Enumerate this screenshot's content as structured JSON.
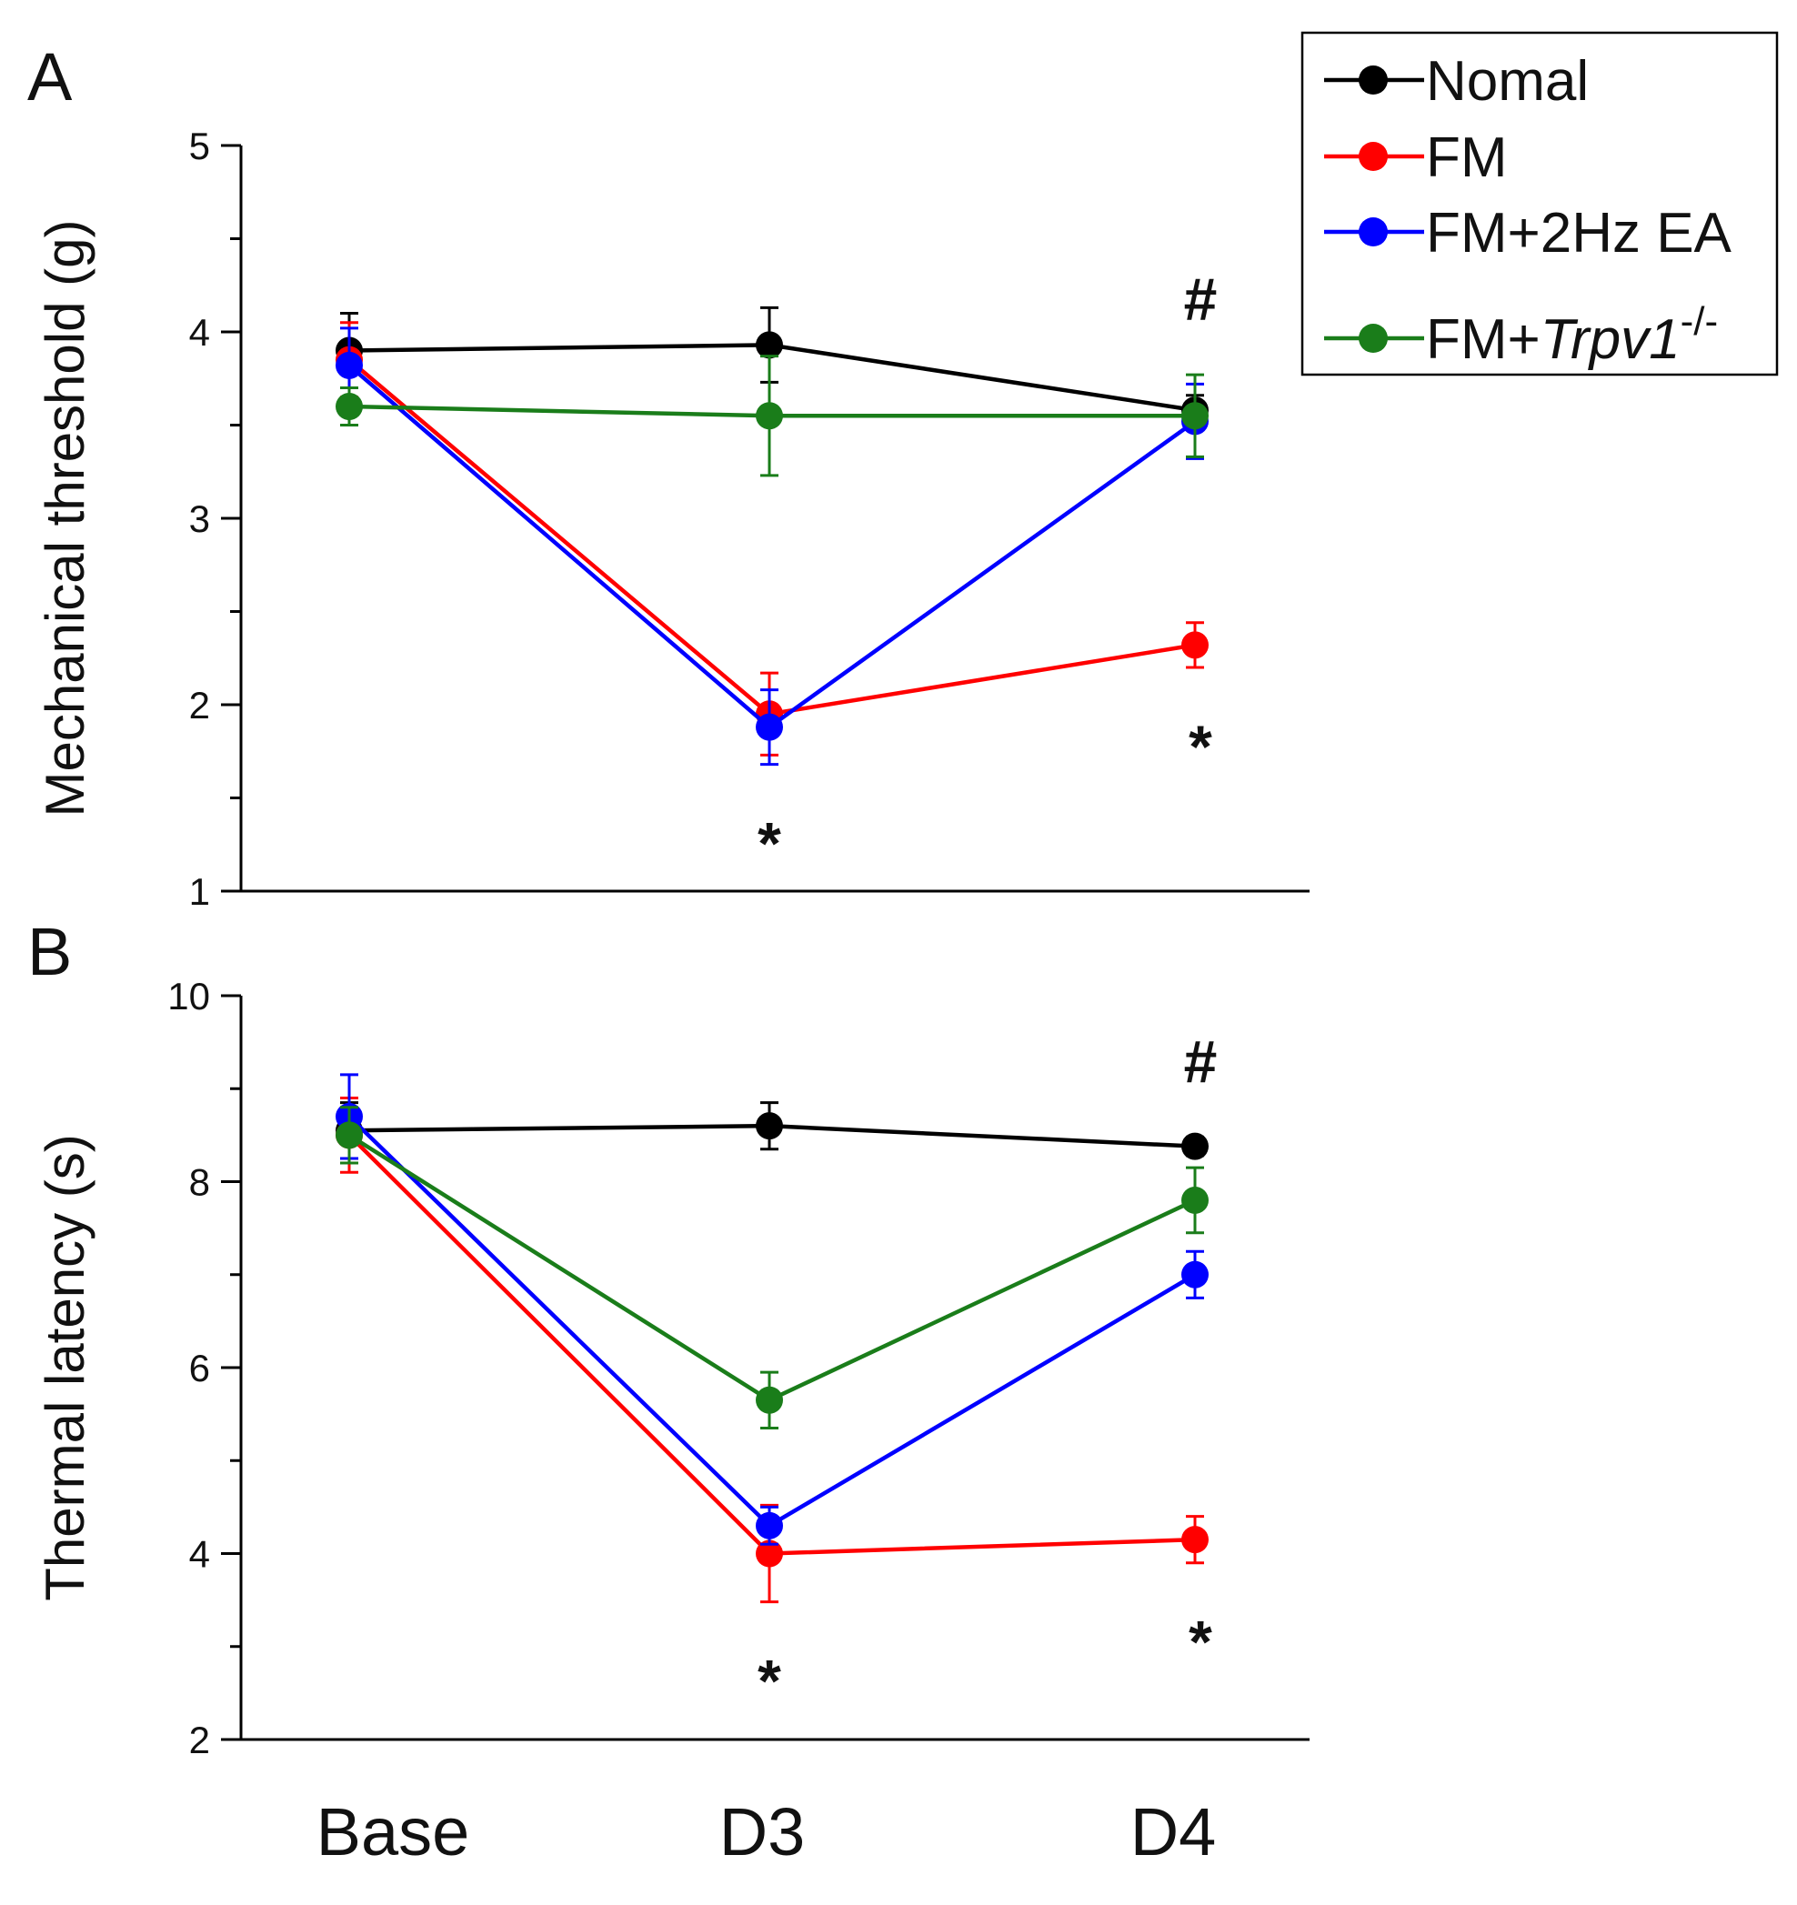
{
  "figure": {
    "panel_labels": [
      "A",
      "B"
    ],
    "x_categories": [
      "Base",
      "D3",
      "D4"
    ]
  },
  "legend": {
    "items": [
      {
        "label": "Nomal",
        "color": "#000000"
      },
      {
        "label": "FM",
        "color": "#ff0000"
      },
      {
        "label": "FM+2Hz EA",
        "color": "#0000ff"
      },
      {
        "label_prefix": "FM+",
        "label_italic": "Trpv1",
        "label_sup": "-/-",
        "color": "#1a7d1a"
      }
    ]
  },
  "chart_data": [
    {
      "type": "line",
      "panel": "A",
      "ylabel": "Mechanical threshold (g)",
      "xlabel": "",
      "categories": [
        "Base",
        "D3",
        "D4"
      ],
      "ylim": [
        1,
        5
      ],
      "yticks": [
        1,
        2,
        3,
        4,
        5
      ],
      "series": [
        {
          "name": "Nomal",
          "color": "#000000",
          "values": [
            3.9,
            3.93,
            3.58
          ],
          "err": [
            0.2,
            0.2,
            0.08
          ]
        },
        {
          "name": "FM",
          "color": "#ff0000",
          "values": [
            3.85,
            1.95,
            2.32
          ],
          "err": [
            0.2,
            0.22,
            0.12
          ]
        },
        {
          "name": "FM+2Hz EA",
          "color": "#0000ff",
          "values": [
            3.82,
            1.88,
            3.52
          ],
          "err": [
            0.2,
            0.2,
            0.2
          ]
        },
        {
          "name": "FM+Trpv1-/-",
          "color": "#1a7d1a",
          "values": [
            3.6,
            3.55,
            3.55
          ],
          "err": [
            0.1,
            0.32,
            0.22
          ]
        }
      ],
      "annotations": [
        {
          "text": "*",
          "category": "D3",
          "position": "below"
        },
        {
          "text": "*",
          "category": "D4",
          "position": "below"
        },
        {
          "text": "#",
          "category": "D4",
          "position": "above"
        }
      ]
    },
    {
      "type": "line",
      "panel": "B",
      "ylabel": "Thermal latency (s)",
      "xlabel": "",
      "categories": [
        "Base",
        "D3",
        "D4"
      ],
      "ylim": [
        2,
        10
      ],
      "yticks": [
        2,
        4,
        6,
        8,
        10
      ],
      "series": [
        {
          "name": "Nomal",
          "color": "#000000",
          "values": [
            8.55,
            8.6,
            8.38
          ],
          "err": [
            0.3,
            0.25,
            0.1
          ]
        },
        {
          "name": "FM",
          "color": "#ff0000",
          "values": [
            8.5,
            4.0,
            4.15
          ],
          "err": [
            0.4,
            0.52,
            0.25
          ]
        },
        {
          "name": "FM+2Hz EA",
          "color": "#0000ff",
          "values": [
            8.7,
            4.3,
            7.0
          ],
          "err": [
            0.45,
            0.2,
            0.25
          ]
        },
        {
          "name": "FM+Trpv1-/-",
          "color": "#1a7d1a",
          "values": [
            8.5,
            5.65,
            7.8
          ],
          "err": [
            0.3,
            0.3,
            0.35
          ]
        }
      ],
      "annotations": [
        {
          "text": "*",
          "category": "D3",
          "position": "below"
        },
        {
          "text": "*",
          "category": "D4",
          "position": "below"
        },
        {
          "text": "#",
          "category": "D4",
          "position": "above"
        }
      ]
    }
  ]
}
